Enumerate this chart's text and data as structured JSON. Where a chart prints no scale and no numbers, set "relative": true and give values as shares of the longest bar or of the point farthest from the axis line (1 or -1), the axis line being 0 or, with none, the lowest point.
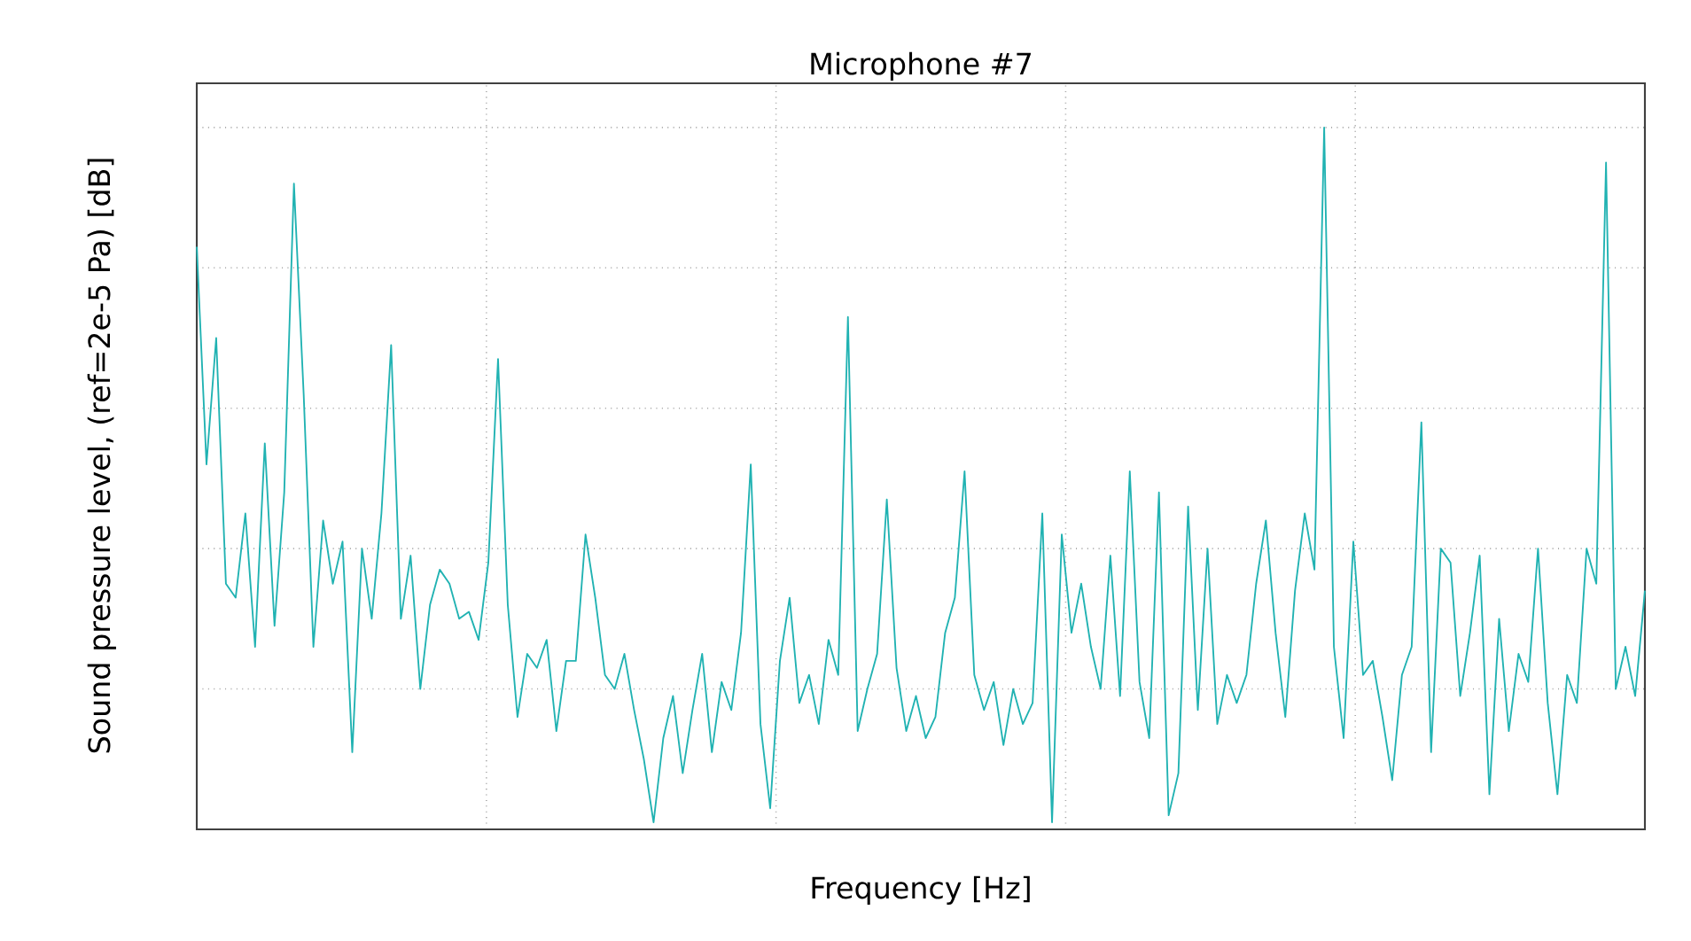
{
  "chart_data": {
    "type": "line",
    "title": "Microphone #7",
    "xlabel": "Frequency [Hz]",
    "ylabel": "Sound pressure level, (ref=2e-5 Pa) [dB]",
    "relative": true,
    "grid": true,
    "line_style": "solid",
    "marker": "none",
    "categories": [
      null,
      null,
      null,
      null,
      null,
      null,
      null,
      null,
      null,
      null,
      null,
      null,
      null,
      null,
      null,
      null,
      null,
      null,
      null,
      null,
      null,
      null,
      null,
      null,
      null,
      null,
      null,
      null,
      null,
      null,
      null,
      null,
      null,
      null,
      null,
      null,
      null,
      null,
      null,
      null,
      null,
      null,
      null,
      null,
      null,
      null,
      null,
      null,
      null,
      null,
      null,
      null,
      null,
      null,
      null,
      null,
      null,
      null,
      null,
      null,
      null,
      null,
      null,
      null,
      null,
      null,
      null,
      null,
      null,
      null,
      null,
      null,
      null,
      null,
      null,
      null,
      null,
      null,
      null,
      null,
      null,
      null,
      null,
      null,
      null,
      null,
      null,
      null,
      null,
      null,
      null,
      null,
      null,
      null,
      null,
      null,
      null,
      null,
      null,
      null,
      null,
      null,
      null,
      null,
      null,
      null,
      null,
      null,
      null,
      null,
      null,
      null,
      null,
      null,
      null,
      null,
      null,
      null,
      null,
      null,
      null,
      null,
      null,
      null,
      null,
      null,
      null,
      null,
      null,
      null,
      null,
      null,
      null,
      null,
      null,
      null,
      null,
      null,
      null,
      null,
      null,
      null,
      null,
      null,
      null,
      null,
      null,
      null,
      null,
      null
    ],
    "series": [
      {
        "color": "#20b2b2",
        "values": [
          0.83,
          0.52,
          0.7,
          0.35,
          0.33,
          0.45,
          0.26,
          0.55,
          0.29,
          0.48,
          0.92,
          0.62,
          0.26,
          0.44,
          0.35,
          0.41,
          0.11,
          0.4,
          0.3,
          0.45,
          0.69,
          0.3,
          0.39,
          0.2,
          0.32,
          0.37,
          0.35,
          0.3,
          0.31,
          0.27,
          0.38,
          0.67,
          0.32,
          0.16,
          0.25,
          0.23,
          0.27,
          0.14,
          0.24,
          0.24,
          0.42,
          0.33,
          0.22,
          0.2,
          0.25,
          0.17,
          0.1,
          0.01,
          0.13,
          0.19,
          0.08,
          0.17,
          0.25,
          0.11,
          0.21,
          0.17,
          0.28,
          0.52,
          0.15,
          0.03,
          0.24,
          0.33,
          0.18,
          0.22,
          0.15,
          0.27,
          0.22,
          0.73,
          0.14,
          0.2,
          0.25,
          0.47,
          0.23,
          0.14,
          0.19,
          0.13,
          0.16,
          0.28,
          0.33,
          0.51,
          0.22,
          0.17,
          0.21,
          0.12,
          0.2,
          0.15,
          0.18,
          0.45,
          0.01,
          0.42,
          0.28,
          0.35,
          0.26,
          0.2,
          0.39,
          0.19,
          0.51,
          0.21,
          0.13,
          0.48,
          0.02,
          0.08,
          0.46,
          0.17,
          0.4,
          0.15,
          0.22,
          0.18,
          0.22,
          0.35,
          0.44,
          0.28,
          0.16,
          0.34,
          0.45,
          0.37,
          1.0,
          0.26,
          0.13,
          0.41,
          0.22,
          0.24,
          0.16,
          0.07,
          0.22,
          0.26,
          0.58,
          0.11,
          0.4,
          0.38,
          0.19,
          0.28,
          0.39,
          0.05,
          0.3,
          0.14,
          0.25,
          0.21,
          0.4,
          0.18,
          0.05,
          0.22,
          0.18,
          0.4,
          0.35,
          0.95,
          0.2,
          0.26,
          0.19,
          0.34
        ]
      }
    ]
  }
}
